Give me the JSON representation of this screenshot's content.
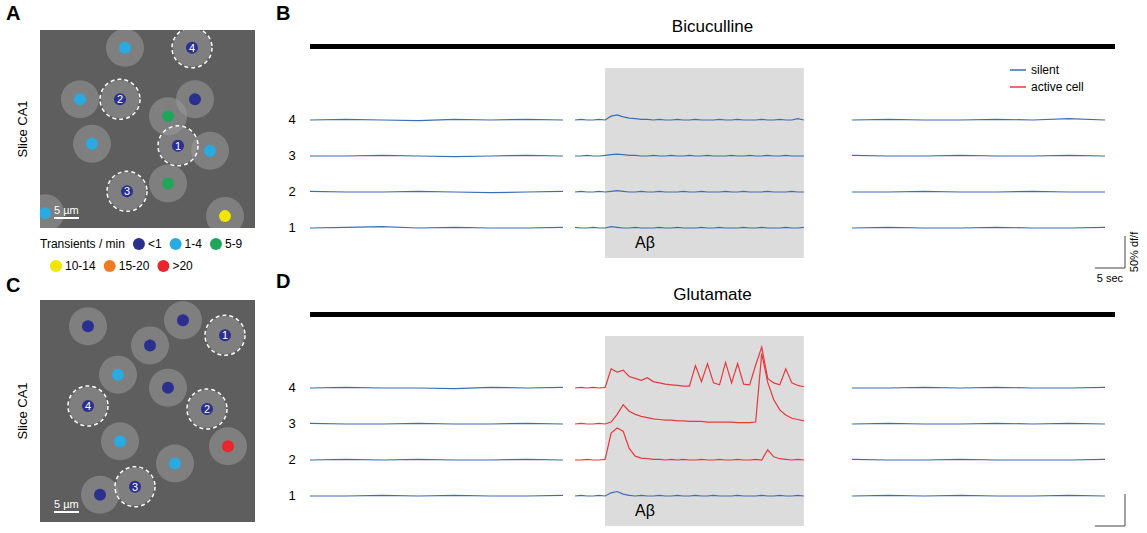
{
  "images": [
    {
      "letter": "A",
      "label": "Slice CA1",
      "xlim": [
        0,
        43
      ],
      "ylim": [
        0,
        40
      ],
      "scale_bar": {
        "value": 5,
        "label": "5 µm"
      },
      "cells": [
        {
          "x": 17,
          "y": 3.6,
          "rate": "1-4"
        },
        {
          "x": 30.4,
          "y": 3.6,
          "rate": "<1",
          "label": "4"
        },
        {
          "x": 8,
          "y": 14,
          "rate": "1-4"
        },
        {
          "x": 16,
          "y": 14,
          "rate": "<1",
          "label": "2"
        },
        {
          "x": 31,
          "y": 14,
          "rate": "<1"
        },
        {
          "x": 25.6,
          "y": 17.4,
          "rate": "5-9"
        },
        {
          "x": 27.6,
          "y": 23.4,
          "rate": "<1",
          "label": "1"
        },
        {
          "x": 10.4,
          "y": 23,
          "rate": "1-4"
        },
        {
          "x": 34,
          "y": 24.4,
          "rate": "1-4"
        },
        {
          "x": 25.6,
          "y": 31,
          "rate": "5-9"
        },
        {
          "x": 17.4,
          "y": 32.6,
          "rate": "<1",
          "label": "3"
        },
        {
          "x": 37,
          "y": 37.6,
          "rate": "10-14"
        },
        {
          "x": 1,
          "y": 37,
          "rate": "1-4"
        }
      ]
    },
    {
      "letter": "C",
      "label": "Slice CA1",
      "xlim": [
        0,
        43
      ],
      "ylim": [
        0,
        44
      ],
      "scale_bar": {
        "value": 5,
        "label": "5 µm"
      },
      "cells": [
        {
          "x": 9.6,
          "y": 5.2,
          "rate": "<1"
        },
        {
          "x": 28.6,
          "y": 4,
          "rate": "<1"
        },
        {
          "x": 37,
          "y": 7,
          "rate": "<1",
          "label": "1"
        },
        {
          "x": 22,
          "y": 9,
          "rate": "<1"
        },
        {
          "x": 15.6,
          "y": 14.8,
          "rate": "1-4"
        },
        {
          "x": 25.6,
          "y": 17.4,
          "rate": "<1"
        },
        {
          "x": 9.6,
          "y": 21,
          "rate": "<1",
          "label": "4"
        },
        {
          "x": 33.4,
          "y": 21.6,
          "rate": "<1",
          "label": "2"
        },
        {
          "x": 16,
          "y": 28,
          "rate": "1-4"
        },
        {
          "x": 37.6,
          "y": 29,
          "rate": ">20"
        },
        {
          "x": 27,
          "y": 32.4,
          "rate": "1-4"
        },
        {
          "x": 19,
          "y": 37,
          "rate": "<1",
          "label": "3"
        },
        {
          "x": 12,
          "y": 38.6,
          "rate": "<1"
        }
      ]
    }
  ],
  "rate_legend": {
    "title": "Transients / min",
    "categories": [
      "<1",
      "1-4",
      "5-9",
      "10-14",
      "15-20",
      ">20"
    ],
    "colors": [
      "#2b2f8f",
      "#29aae1",
      "#1fa65a",
      "#f2e600",
      "#f07a22",
      "#e8262b"
    ]
  },
  "chart_data": [
    {
      "type": "line",
      "letter": "B",
      "title": "Bicuculline",
      "x": [
        0,
        6,
        12,
        18,
        24,
        30,
        36,
        42,
        43,
        44,
        45,
        46,
        47,
        48,
        49,
        50,
        51,
        52,
        53,
        54,
        55,
        56,
        57,
        58,
        59,
        60,
        61,
        62,
        63,
        64,
        65,
        66,
        67,
        68,
        69,
        70,
        71,
        72,
        73,
        74,
        75,
        76,
        77,
        78,
        79,
        80,
        81,
        82,
        86,
        90,
        96,
        102,
        108,
        114,
        120,
        126,
        132
      ],
      "xlim": [
        0,
        132
      ],
      "shaded": {
        "from": 49,
        "to": 82,
        "label": "Aβ"
      },
      "scale_bar": {
        "x": 5,
        "x_label": "5 sec",
        "y": 50,
        "y_label": "50% df/f"
      },
      "legend": "top-right",
      "legend_items": [
        {
          "name": "silent",
          "color": "#3d6db5"
        },
        {
          "name": "active cell",
          "color": "#e8383d"
        }
      ],
      "series": [
        {
          "name": "4",
          "colors": [
            "#3d6db5",
            "#3d6db5",
            "#3d6db5"
          ],
          "values": [
            0,
            1,
            0,
            -1,
            1,
            0,
            1,
            0,
            null,
            0,
            1,
            0,
            0,
            1,
            0,
            6,
            8,
            5,
            3,
            2,
            1,
            1,
            0,
            1,
            0,
            0,
            1,
            0,
            0,
            1,
            0,
            0,
            0,
            1,
            0,
            0,
            1,
            0,
            0,
            0,
            1,
            0,
            0,
            1,
            0,
            0,
            2,
            0,
            null,
            0,
            1,
            0,
            0,
            1,
            0,
            2,
            0
          ]
        },
        {
          "name": "3",
          "colors": [
            "#3d6db5",
            "#3d6db5",
            "#3d6db5"
          ],
          "values": [
            0,
            0,
            1,
            0,
            -1,
            0,
            1,
            0,
            null,
            0,
            0,
            1,
            0,
            0,
            1,
            2,
            3,
            2,
            1,
            1,
            0,
            0,
            1,
            0,
            0,
            1,
            0,
            0,
            1,
            0,
            0,
            1,
            0,
            0,
            0,
            1,
            0,
            0,
            1,
            0,
            0,
            1,
            0,
            0,
            1,
            0,
            0,
            0,
            null,
            1,
            0,
            0,
            1,
            0,
            0,
            1,
            0
          ]
        },
        {
          "name": "2",
          "colors": [
            "#3d6db5",
            "#3d6db5",
            "#3d6db5"
          ],
          "values": [
            1,
            0,
            0,
            1,
            0,
            -1,
            0,
            1,
            null,
            0,
            1,
            0,
            0,
            1,
            0,
            1,
            2,
            1,
            0,
            0,
            1,
            0,
            0,
            1,
            0,
            0,
            0,
            1,
            0,
            0,
            1,
            0,
            0,
            0,
            1,
            0,
            0,
            1,
            0,
            0,
            0,
            1,
            0,
            0,
            0,
            1,
            0,
            0,
            null,
            0,
            0,
            1,
            0,
            0,
            1,
            0,
            0
          ]
        },
        {
          "name": "1",
          "colors": [
            "#3d6db5",
            "#3d6db5",
            "#3d6db5"
          ],
          "values": [
            0,
            1,
            2,
            0,
            1,
            0,
            0,
            1,
            null,
            1,
            0,
            0,
            1,
            0,
            0,
            2,
            1,
            0,
            0,
            1,
            0,
            0,
            0,
            1,
            0,
            0,
            1,
            0,
            0,
            0,
            1,
            0,
            0,
            1,
            0,
            0,
            0,
            1,
            0,
            0,
            1,
            0,
            0,
            0,
            1,
            0,
            0,
            1,
            null,
            0,
            1,
            0,
            0,
            1,
            0,
            0,
            1
          ]
        }
      ]
    },
    {
      "type": "line",
      "letter": "D",
      "title": "Glutamate",
      "x": [
        0,
        6,
        12,
        18,
        24,
        30,
        36,
        42,
        43,
        44,
        45,
        46,
        47,
        48,
        49,
        50,
        51,
        52,
        53,
        54,
        55,
        56,
        57,
        58,
        59,
        60,
        61,
        62,
        63,
        64,
        65,
        66,
        67,
        68,
        69,
        70,
        71,
        72,
        73,
        74,
        75,
        76,
        77,
        78,
        79,
        80,
        81,
        82,
        86,
        90,
        96,
        102,
        108,
        114,
        120,
        126,
        132
      ],
      "xlim": [
        0,
        132
      ],
      "shaded": {
        "from": 49,
        "to": 82,
        "label": "Aβ"
      },
      "scale_bar": {
        "x": 5,
        "y": 50
      },
      "series": [
        {
          "name": "4",
          "colors": [
            "#3d6db5",
            "#e8383d",
            "#3d6db5"
          ],
          "values": [
            0,
            1,
            0,
            0,
            -1,
            1,
            0,
            1,
            null,
            0,
            1,
            0,
            1,
            0,
            1,
            30,
            25,
            28,
            18,
            15,
            12,
            16,
            10,
            8,
            6,
            5,
            4,
            3,
            3,
            35,
            10,
            38,
            8,
            5,
            40,
            8,
            38,
            6,
            5,
            36,
            64,
            15,
            8,
            5,
            30,
            8,
            4,
            2,
            null,
            0,
            0,
            1,
            0,
            1,
            0,
            0,
            1
          ]
        },
        {
          "name": "3",
          "colors": [
            "#3d6db5",
            "#e8383d",
            "#3d6db5"
          ],
          "values": [
            1,
            0,
            0,
            1,
            0,
            0,
            1,
            0,
            null,
            0,
            1,
            0,
            0,
            1,
            0,
            3,
            15,
            30,
            20,
            15,
            12,
            10,
            8,
            7,
            6,
            6,
            5,
            5,
            4,
            4,
            4,
            3,
            3,
            3,
            3,
            3,
            2,
            2,
            2,
            3,
            110,
            65,
            38,
            22,
            14,
            9,
            7,
            5,
            null,
            0,
            1,
            0,
            0,
            1,
            0,
            1,
            0
          ]
        },
        {
          "name": "2",
          "colors": [
            "#3d6db5",
            "#e8383d",
            "#3d6db5"
          ],
          "values": [
            0,
            1,
            0,
            1,
            0,
            0,
            1,
            0,
            null,
            0,
            0,
            1,
            0,
            0,
            1,
            42,
            50,
            45,
            18,
            6,
            3,
            2,
            1,
            1,
            0,
            1,
            0,
            1,
            0,
            0,
            1,
            0,
            0,
            1,
            0,
            0,
            1,
            0,
            0,
            1,
            0,
            16,
            5,
            2,
            1,
            0,
            1,
            0,
            null,
            1,
            0,
            0,
            1,
            0,
            0,
            0,
            1
          ]
        },
        {
          "name": "1",
          "colors": [
            "#3d6db5",
            "#3d6db5",
            "#3d6db5"
          ],
          "values": [
            0,
            0,
            1,
            0,
            1,
            0,
            0,
            1,
            null,
            0,
            1,
            0,
            0,
            1,
            0,
            5,
            7,
            3,
            1,
            0,
            1,
            0,
            0,
            1,
            0,
            0,
            1,
            0,
            0,
            1,
            0,
            0,
            1,
            0,
            0,
            0,
            1,
            0,
            0,
            0,
            1,
            0,
            0,
            1,
            0,
            0,
            1,
            0,
            null,
            0,
            1,
            0,
            1,
            0,
            0,
            1,
            0
          ]
        }
      ]
    }
  ]
}
